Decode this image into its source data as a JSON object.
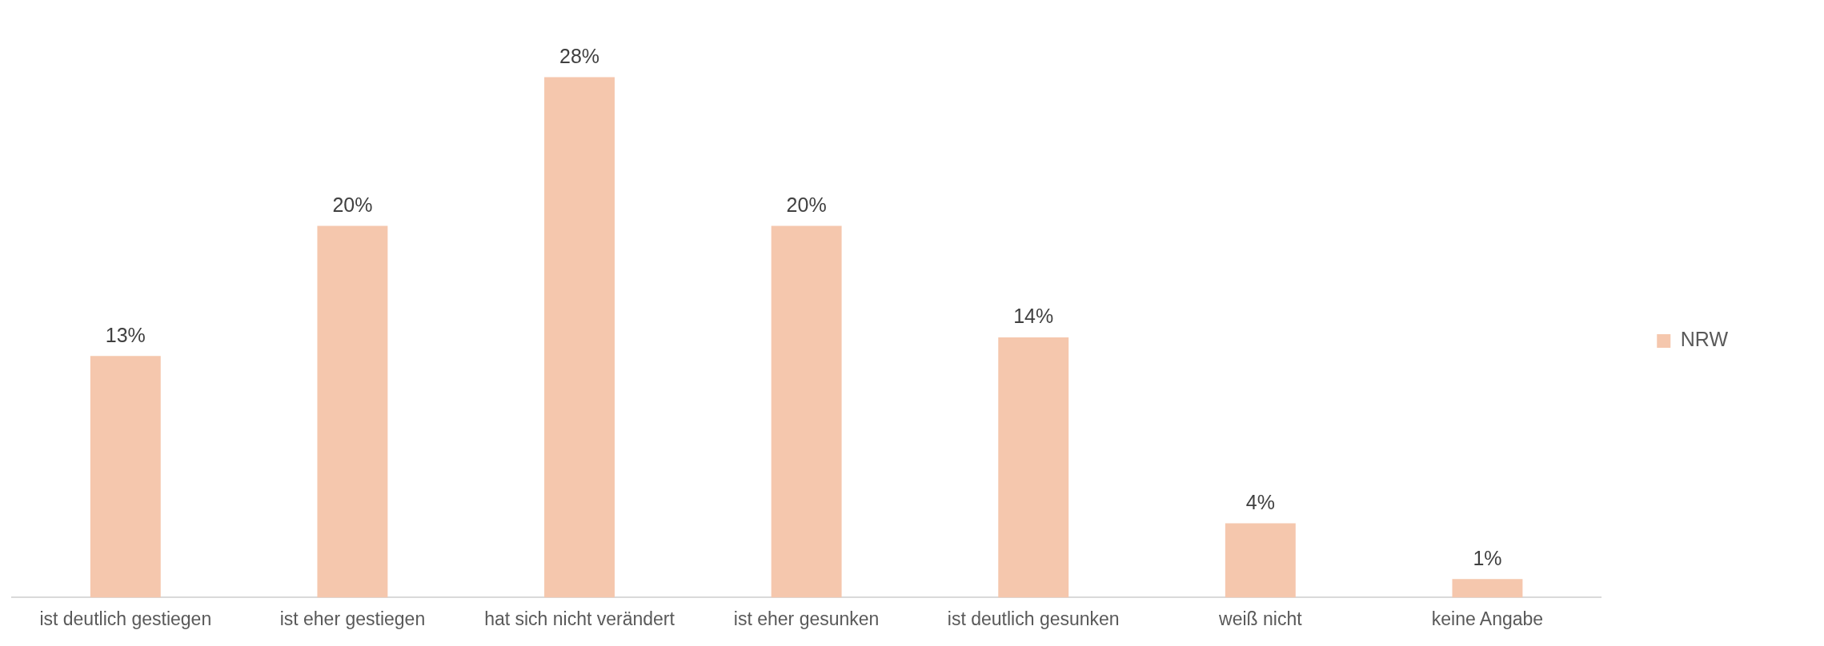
{
  "chart_data": {
    "type": "bar",
    "categories": [
      "ist deutlich gestiegen",
      "ist eher gestiegen",
      "hat sich nicht verändert",
      "ist eher gesunken",
      "ist deutlich gesunken",
      "weiß nicht",
      "keine Angabe"
    ],
    "series": [
      {
        "name": "NRW",
        "color": "#f5c7ad",
        "values": [
          13,
          20,
          28,
          20,
          14,
          4,
          1
        ],
        "value_labels": [
          "13%",
          "20%",
          "28%",
          "20%",
          "14%",
          "4%",
          "1%"
        ]
      }
    ],
    "legend": "right",
    "grid": false
  }
}
